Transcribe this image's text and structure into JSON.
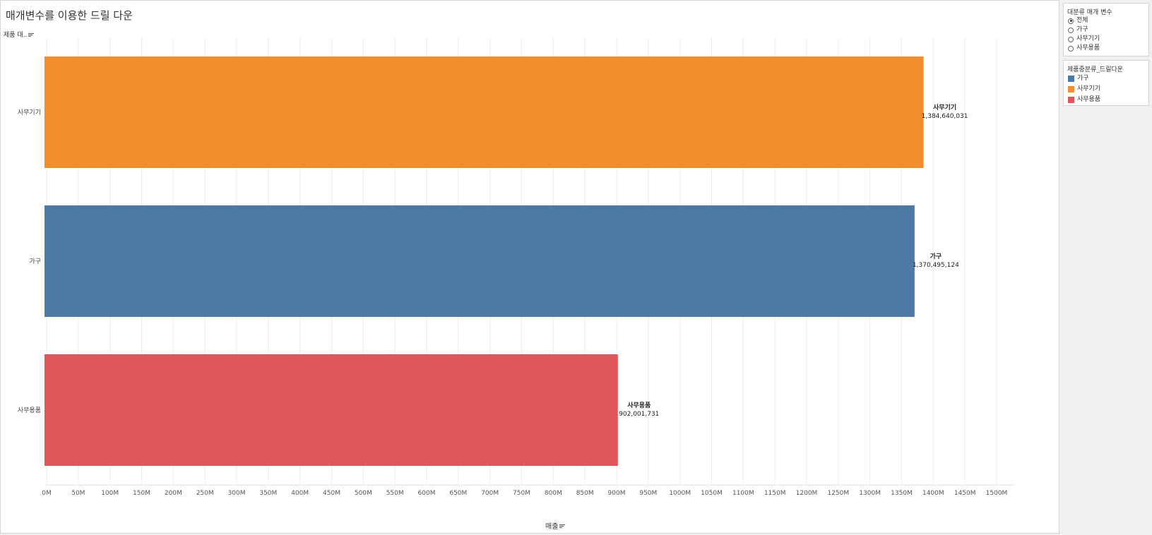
{
  "title": "매개변수를 이용한 드릴 다운",
  "y_field_label": "제품 대..",
  "x_field_label": "매출",
  "parameter": {
    "title": "대분류 매개 변수",
    "options": [
      "전체",
      "가구",
      "사무기기",
      "사무용품"
    ],
    "selected": "전체"
  },
  "legend": {
    "title": "제품중분류_드릴다운",
    "items": [
      {
        "label": "가구",
        "color": "#4e79a7"
      },
      {
        "label": "사무기기",
        "color": "#f28e2b"
      },
      {
        "label": "사무용품",
        "color": "#e15759"
      }
    ]
  },
  "chart_data": {
    "type": "bar",
    "orientation": "horizontal",
    "categories": [
      "사무기기",
      "가구",
      "사무용품"
    ],
    "values": [
      1384640031,
      1370495124,
      902001731
    ],
    "value_labels": [
      "1,384,640,031",
      "1,370,495,124",
      "902,001,731"
    ],
    "colors": [
      "#f28e2b",
      "#4e79a7",
      "#e15759"
    ],
    "xlabel": "매출",
    "ylabel": "제품 대..",
    "xlim": [
      0,
      1530000000
    ],
    "x_ticks": [
      "0M",
      "50M",
      "100M",
      "150M",
      "200M",
      "250M",
      "300M",
      "350M",
      "400M",
      "450M",
      "500M",
      "550M",
      "600M",
      "650M",
      "700M",
      "750M",
      "800M",
      "850M",
      "900M",
      "950M",
      "1000M",
      "1050M",
      "1100M",
      "1150M",
      "1200M",
      "1250M",
      "1300M",
      "1350M",
      "1400M",
      "1450M",
      "1500M"
    ],
    "grid": true
  }
}
